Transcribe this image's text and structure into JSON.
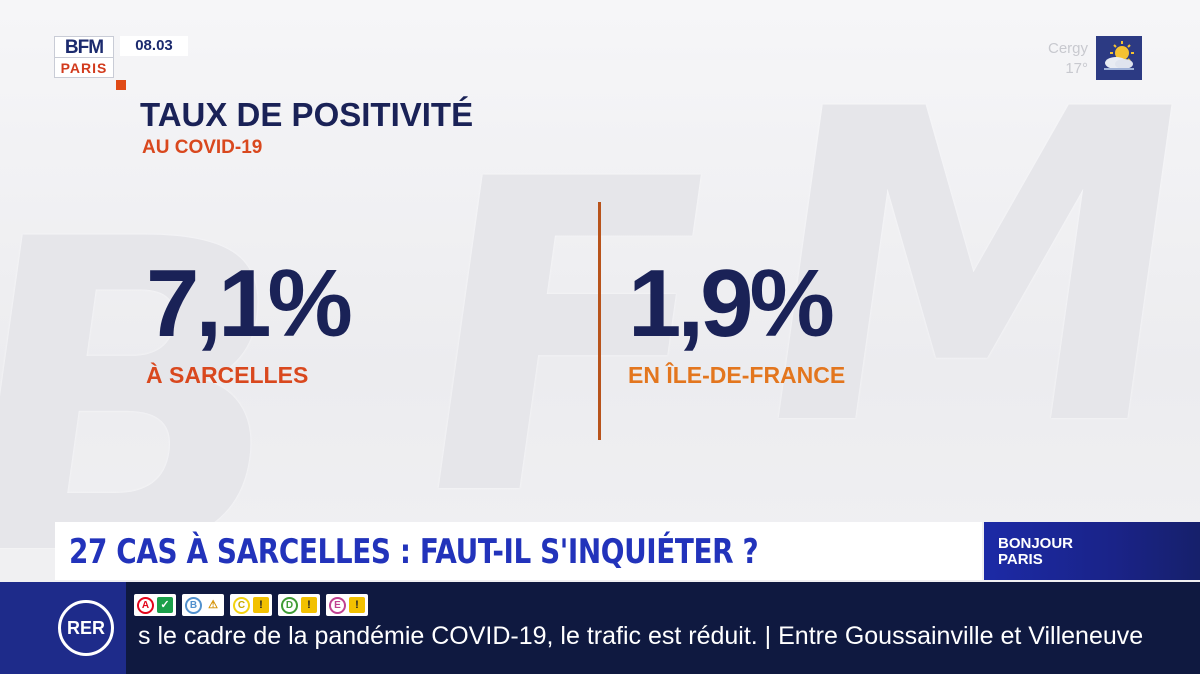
{
  "channel": {
    "logo_top": "BFM",
    "logo_bottom": "PARIS",
    "time": "08.03"
  },
  "weather": {
    "city": "Cergy",
    "temperature": "17°",
    "icon": "sun-cloud-icon"
  },
  "graphic": {
    "title": "TAUX DE POSITIVITÉ",
    "subtitle": "AU COVID-19",
    "left_value": "7,1%",
    "left_label": "À SARCELLES",
    "right_value": "1,9%",
    "right_label": "EN ÎLE-DE-FRANCE"
  },
  "headline": {
    "text": "27 CAS À SARCELLES : FAUT-IL S'INQUIÉTER ?",
    "show_line1": "BONJOUR",
    "show_line2": "PARIS"
  },
  "ticker": {
    "network_badge": "RER",
    "lines": [
      {
        "letter": "A",
        "status": "ok",
        "status_glyph": "✓"
      },
      {
        "letter": "B",
        "status": "work",
        "status_glyph": "⚠"
      },
      {
        "letter": "C",
        "status": "warn",
        "status_glyph": "!"
      },
      {
        "letter": "D",
        "status": "warn",
        "status_glyph": "!"
      },
      {
        "letter": "E",
        "status": "warn",
        "status_glyph": "!"
      }
    ],
    "text": "s le cadre de la pandémie COVID-19, le trafic est réduit. | Entre Goussainville et Villeneuve"
  },
  "colors": {
    "navy": "#1a2257",
    "red_orange": "#d9481e",
    "orange": "#e3761e",
    "headline_blue": "#2233bb"
  }
}
